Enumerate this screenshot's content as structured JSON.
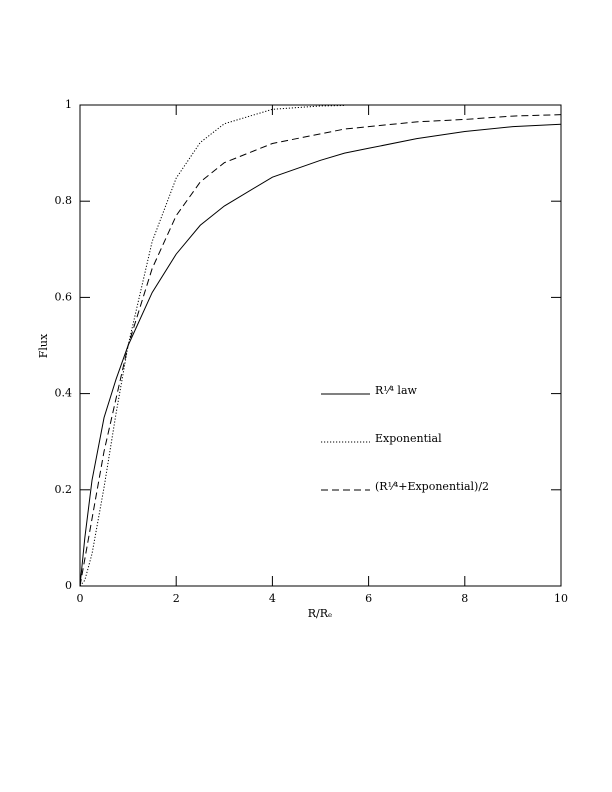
{
  "chart_data": {
    "type": "line",
    "x_label": "R/Rₑ",
    "y_label": "Flux",
    "x": [
      0,
      0.1,
      0.25,
      0.5,
      0.75,
      1,
      1.5,
      2,
      2.5,
      3,
      4,
      5,
      5.5,
      6,
      7,
      8,
      9,
      10
    ],
    "series": [
      {
        "name": "R¹⁄⁴ law",
        "color": "#000000",
        "dash": "solid",
        "values": [
          0,
          0.1,
          0.22,
          0.35,
          0.43,
          0.5,
          0.61,
          0.69,
          0.75,
          0.79,
          0.85,
          0.885,
          0.9,
          0.91,
          0.93,
          0.945,
          0.955,
          0.96
        ]
      },
      {
        "name": "Exponential",
        "color": "#000000",
        "dash": "dotted",
        "values": [
          0,
          0.012,
          0.067,
          0.205,
          0.359,
          0.5,
          0.716,
          0.848,
          0.922,
          0.961,
          0.991,
          0.998,
          0.999,
          null,
          null,
          null,
          null,
          null
        ]
      },
      {
        "name": "(R¹⁄⁴+Exponential)/2",
        "color": "#000000",
        "dash": "dashed",
        "values": [
          0,
          0.056,
          0.14,
          0.28,
          0.39,
          0.5,
          0.66,
          0.77,
          0.84,
          0.88,
          0.92,
          0.94,
          0.95,
          0.955,
          0.965,
          0.97,
          0.977,
          0.98
        ]
      }
    ],
    "xlim": [
      0,
      10
    ],
    "xticks": [
      0,
      2,
      4,
      6,
      8,
      10
    ],
    "ylim": [
      0,
      1
    ],
    "yticks": [
      0,
      0.2,
      0.4,
      0.6,
      0.8,
      1
    ],
    "grid": false
  }
}
